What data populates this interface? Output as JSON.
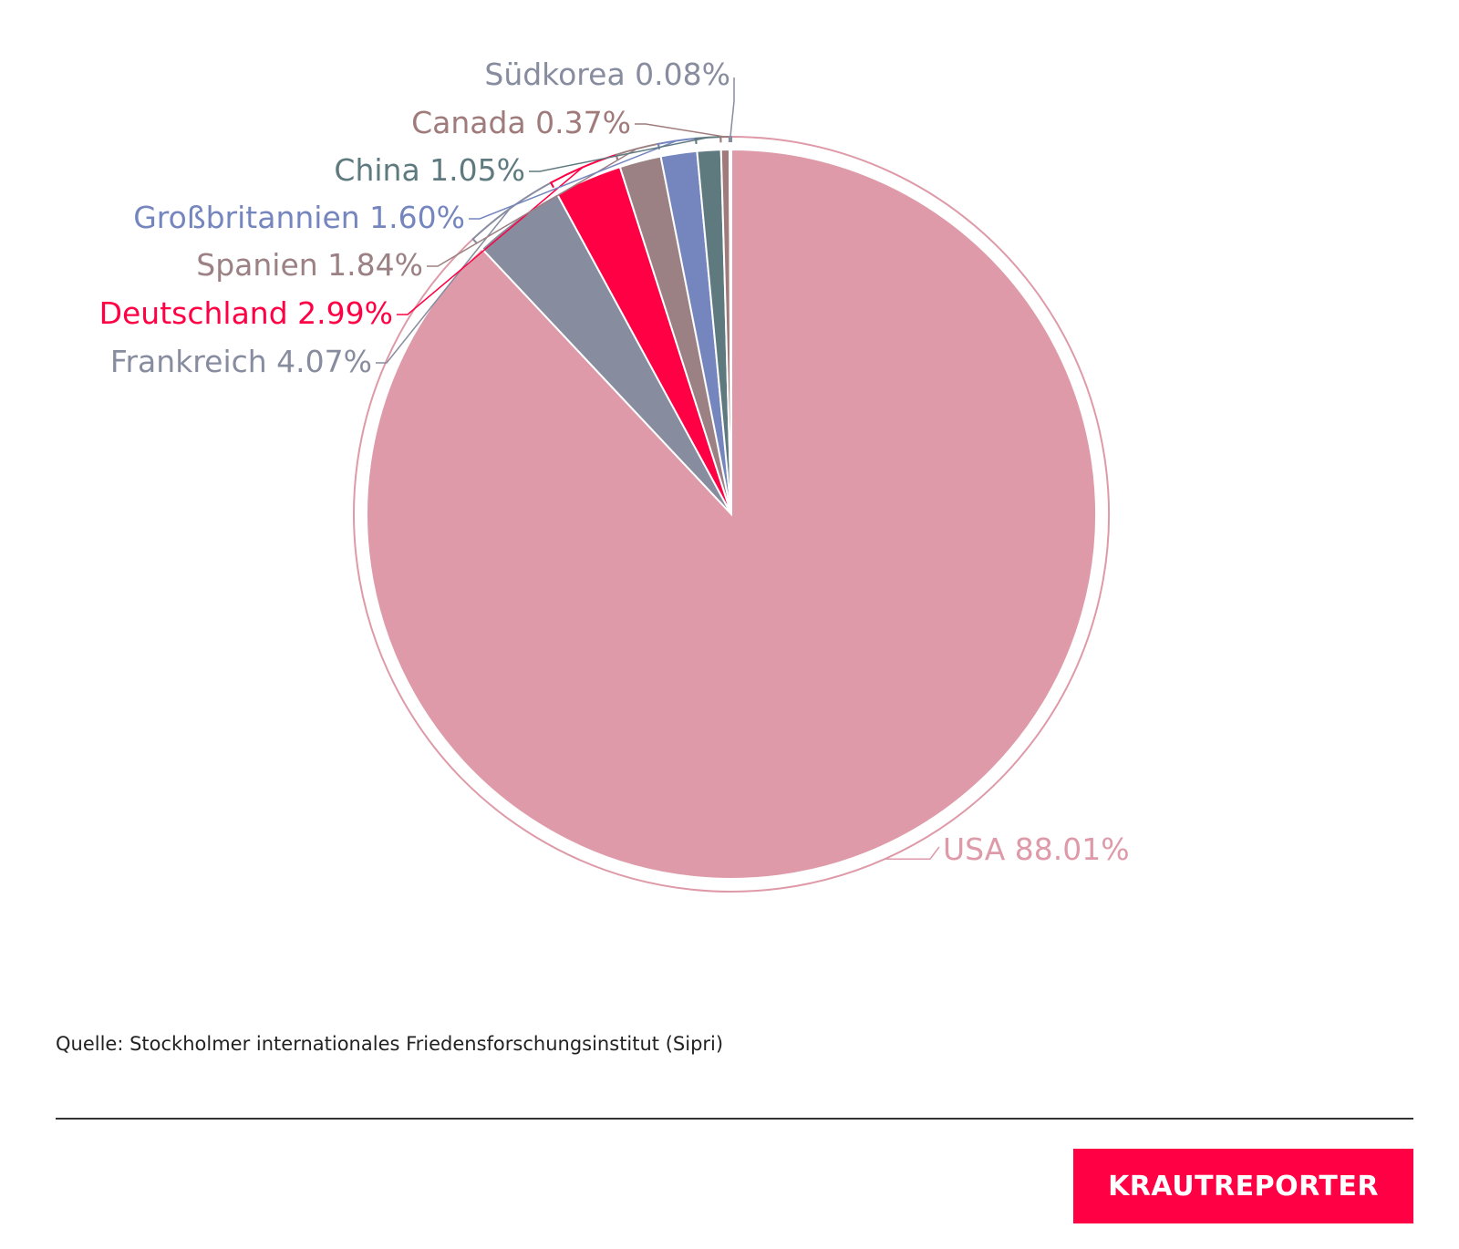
{
  "chart_data": {
    "type": "pie",
    "slices": [
      {
        "label": "USA 88.01%",
        "name": "USA",
        "value": 88.01,
        "color": "#de9aa8",
        "label_color": "#de9aa8"
      },
      {
        "label": "Frankreich 4.07%",
        "name": "Frankreich",
        "value": 4.07,
        "color": "#878c9f",
        "label_color": "#878c9f"
      },
      {
        "label": "Deutschland 2.99%",
        "name": "Deutschland",
        "value": 2.99,
        "color": "#ff0044",
        "label_color": "#ff0044"
      },
      {
        "label": "Spanien 1.84%",
        "name": "Spanien",
        "value": 1.84,
        "color": "#9b8184",
        "label_color": "#9b8184"
      },
      {
        "label": "Großbritannien 1.60%",
        "name": "Großbritannien",
        "value": 1.6,
        "color": "#7586bf",
        "label_color": "#7586bf"
      },
      {
        "label": "China 1.05%",
        "name": "China",
        "value": 1.05,
        "color": "#5f7a7f",
        "label_color": "#5f7a7f"
      },
      {
        "label": "Canada 0.37%",
        "name": "Canada",
        "value": 0.37,
        "color": "#a07b7b",
        "label_color": "#a07b7b"
      },
      {
        "label": "Südkorea 0.08%",
        "name": "Südkorea",
        "value": 0.08,
        "color": "#878c9f",
        "label_color": "#878c9f"
      }
    ]
  },
  "footer": {
    "source": "Quelle: Stockholmer internationales Friedensforschungsinstitut (Sipri)",
    "logo_text": "KRAUTREPORTER",
    "logo_color": "#ff0044"
  }
}
